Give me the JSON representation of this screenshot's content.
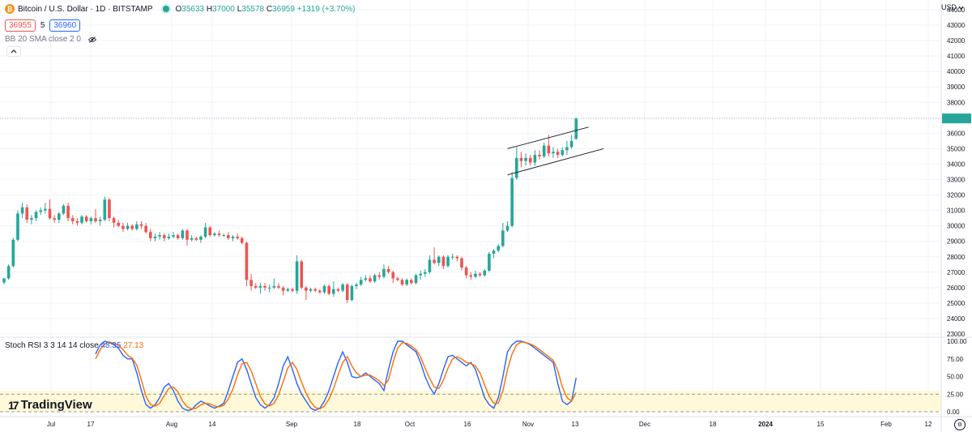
{
  "header": {
    "title": "Bitcoin / U.S. Dollar · 1D · BITSTAMP",
    "ohlc": {
      "o_label": "O",
      "o": "35633",
      "h_label": "H",
      "h": "37000",
      "l_label": "L",
      "l": "35578",
      "c_label": "C",
      "c": "36959",
      "change": "+1319 (+3.70%)"
    }
  },
  "trade": {
    "sell": "36955",
    "spread": "5",
    "buy": "36960"
  },
  "indicator": {
    "label": "BB 20 SMA close 2 0"
  },
  "collapse_icon": "chevron-up-icon",
  "rsi_legend": {
    "label": "Stoch RSI 3 3 14 14 close",
    "k": "48.35",
    "d": "27.13"
  },
  "currency": "USD",
  "logo": {
    "mark": "17",
    "text": "TradingView"
  },
  "colors": {
    "up": "#26a69a",
    "down": "#ef5350",
    "k_line": "#2962ff",
    "d_line": "#ff6d00",
    "band": "#fff9d9",
    "grid": "#f0f3fa"
  },
  "chart_data": [
    {
      "type": "candlestick",
      "name": "BTCUSD",
      "y_ticks": [
        "23000",
        "24000",
        "25000",
        "26000",
        "27000",
        "28000",
        "29000",
        "30000",
        "31000",
        "32000",
        "33000",
        "34000",
        "35000",
        "36000",
        "37000",
        "38000",
        "39000",
        "40000",
        "41000",
        "42000",
        "43000",
        "44000"
      ],
      "ylim": [
        23000,
        44000
      ],
      "x_labels": [
        "Jul",
        "17",
        "Aug",
        "14",
        "Sep",
        "18",
        "Oct",
        "16",
        "Nov",
        "13",
        "Dec",
        "18",
        "2024",
        "15",
        "Feb",
        "12"
      ],
      "last_price": 36959,
      "candles": [
        [
          26330,
          26600,
          26200,
          26600
        ],
        [
          26600,
          27500,
          26500,
          27400
        ],
        [
          27400,
          29200,
          27300,
          29100
        ],
        [
          29100,
          31000,
          29000,
          30800
        ],
        [
          30800,
          31500,
          30500,
          31200
        ],
        [
          31200,
          31400,
          30200,
          30400
        ],
        [
          30400,
          30700,
          30100,
          30500
        ],
        [
          30500,
          31000,
          30300,
          30900
        ],
        [
          30900,
          31200,
          30700,
          31000
        ],
        [
          31000,
          31500,
          30800,
          31100
        ],
        [
          31100,
          31700,
          30400,
          30500
        ],
        [
          30500,
          30700,
          30200,
          30400
        ],
        [
          30400,
          30900,
          30200,
          30800
        ],
        [
          30800,
          31400,
          30700,
          31300
        ],
        [
          31300,
          31500,
          30300,
          30500
        ],
        [
          30500,
          30700,
          30100,
          30300
        ],
        [
          30300,
          30500,
          30000,
          30200
        ],
        [
          30200,
          30700,
          30100,
          30600
        ],
        [
          30600,
          30700,
          30200,
          30300
        ],
        [
          30300,
          30600,
          30100,
          30500
        ],
        [
          30500,
          31100,
          30200,
          30300
        ],
        [
          30300,
          30600,
          30000,
          30400
        ],
        [
          30400,
          31900,
          30300,
          31700
        ],
        [
          31700,
          31800,
          30300,
          30500
        ],
        [
          30500,
          30600,
          29900,
          30200
        ],
        [
          30200,
          30400,
          29900,
          30000
        ],
        [
          30000,
          30200,
          29600,
          29800
        ],
        [
          29800,
          30200,
          29700,
          30000
        ],
        [
          30000,
          30100,
          29700,
          29800
        ],
        [
          29800,
          30300,
          29700,
          30100
        ],
        [
          30100,
          30300,
          29800,
          30000
        ],
        [
          30000,
          30200,
          29500,
          29600
        ],
        [
          29600,
          29800,
          29000,
          29200
        ],
        [
          29200,
          29500,
          29000,
          29300
        ],
        [
          29300,
          29600,
          29100,
          29400
        ],
        [
          29400,
          29500,
          29000,
          29200
        ],
        [
          29200,
          29500,
          29100,
          29300
        ],
        [
          29300,
          29600,
          29200,
          29400
        ],
        [
          29400,
          29500,
          29100,
          29200
        ],
        [
          29200,
          29800,
          29100,
          29700
        ],
        [
          29700,
          29800,
          28700,
          29100
        ],
        [
          29100,
          29400,
          29000,
          29200
        ],
        [
          29200,
          29300,
          29000,
          29100
        ],
        [
          29100,
          29400,
          28900,
          29300
        ],
        [
          29300,
          30200,
          29200,
          29900
        ],
        [
          29900,
          30000,
          29300,
          29400
        ],
        [
          29400,
          29600,
          29300,
          29500
        ],
        [
          29500,
          29700,
          29300,
          29400
        ],
        [
          29400,
          29500,
          29300,
          29400
        ],
        [
          29400,
          29600,
          29100,
          29200
        ],
        [
          29200,
          29400,
          29000,
          29300
        ],
        [
          29300,
          29500,
          29100,
          29200
        ],
        [
          29200,
          29300,
          28800,
          28900
        ],
        [
          28900,
          29000,
          26100,
          26500
        ],
        [
          26500,
          26900,
          25800,
          26100
        ],
        [
          26100,
          26300,
          25900,
          26000
        ],
        [
          26000,
          26300,
          25600,
          26100
        ],
        [
          26100,
          26300,
          25800,
          26000
        ],
        [
          26000,
          26200,
          25700,
          26000
        ],
        [
          26000,
          26600,
          25900,
          26100
        ],
        [
          26100,
          26300,
          25900,
          26000
        ],
        [
          26000,
          26100,
          25500,
          25800
        ],
        [
          25800,
          26000,
          25700,
          25900
        ],
        [
          25900,
          26000,
          25700,
          25800
        ],
        [
          25800,
          28100,
          25600,
          27700
        ],
        [
          27700,
          27800,
          25900,
          26000
        ],
        [
          26000,
          26100,
          25200,
          25800
        ],
        [
          25800,
          26000,
          25700,
          25900
        ],
        [
          25900,
          26000,
          25700,
          25800
        ],
        [
          25800,
          25900,
          25600,
          25700
        ],
        [
          25700,
          26200,
          25600,
          26100
        ],
        [
          26100,
          26200,
          25500,
          25600
        ],
        [
          25600,
          26400,
          25400,
          25900
        ],
        [
          25900,
          26000,
          25700,
          25800
        ],
        [
          25800,
          26300,
          25700,
          26200
        ],
        [
          26200,
          26300,
          25000,
          25200
        ],
        [
          25200,
          26200,
          25100,
          26100
        ],
        [
          26100,
          26300,
          25900,
          26200
        ],
        [
          26200,
          26700,
          26100,
          26500
        ],
        [
          26500,
          26800,
          26400,
          26600
        ],
        [
          26600,
          26800,
          26300,
          26400
        ],
        [
          26400,
          26900,
          26300,
          26800
        ],
        [
          26800,
          27000,
          26500,
          26700
        ],
        [
          26700,
          27500,
          26600,
          27200
        ],
        [
          27200,
          27400,
          26900,
          27000
        ],
        [
          27000,
          27100,
          26300,
          26600
        ],
        [
          26600,
          26700,
          26400,
          26500
        ],
        [
          26500,
          26600,
          26100,
          26200
        ],
        [
          26200,
          26600,
          26100,
          26500
        ],
        [
          26500,
          26600,
          26200,
          26300
        ],
        [
          26300,
          26900,
          26200,
          26800
        ],
        [
          26800,
          27100,
          26500,
          26900
        ],
        [
          26900,
          27200,
          26700,
          27000
        ],
        [
          27000,
          28100,
          26900,
          27800
        ],
        [
          27800,
          28600,
          27500,
          27600
        ],
        [
          27600,
          28100,
          27400,
          28000
        ],
        [
          28000,
          28100,
          27200,
          27400
        ],
        [
          27400,
          28100,
          27300,
          28000
        ],
        [
          28000,
          28200,
          27800,
          28000
        ],
        [
          28000,
          28100,
          27700,
          27900
        ],
        [
          27900,
          28000,
          27100,
          27300
        ],
        [
          27300,
          27400,
          26600,
          26800
        ],
        [
          26800,
          27000,
          26500,
          26700
        ],
        [
          26700,
          27100,
          26600,
          26900
        ],
        [
          26900,
          27000,
          26700,
          26800
        ],
        [
          26800,
          27200,
          26700,
          27100
        ],
        [
          27100,
          28300,
          27000,
          28200
        ],
        [
          28200,
          28500,
          27900,
          28400
        ],
        [
          28400,
          28800,
          28300,
          28700
        ],
        [
          28700,
          30200,
          28600,
          29700
        ],
        [
          29700,
          30300,
          29600,
          30000
        ],
        [
          30000,
          33500,
          29900,
          33100
        ],
        [
          33100,
          35100,
          33000,
          34400
        ],
        [
          34400,
          34800,
          33800,
          34200
        ],
        [
          34200,
          34700,
          33900,
          34400
        ],
        [
          34400,
          34600,
          33900,
          34100
        ],
        [
          34100,
          34900,
          33900,
          34600
        ],
        [
          34600,
          34900,
          34300,
          34500
        ],
        [
          34500,
          35400,
          34400,
          35200
        ],
        [
          35200,
          35900,
          34500,
          34700
        ],
        [
          34700,
          35100,
          34400,
          34800
        ],
        [
          34800,
          35000,
          34400,
          34600
        ],
        [
          34600,
          35100,
          34500,
          34900
        ],
        [
          34900,
          35500,
          34600,
          35100
        ],
        [
          35100,
          35900,
          35000,
          35500
        ],
        [
          35633,
          37000,
          35578,
          36959
        ]
      ]
    },
    {
      "type": "line",
      "name": "Stoch RSI",
      "y_ticks": [
        "0.00",
        "25.00",
        "50.00",
        "75.00",
        "100.00"
      ],
      "ylim": [
        0,
        100
      ],
      "band": [
        20,
        80
      ],
      "series": [
        {
          "name": "K",
          "values": [
            82,
            95,
            100,
            98,
            95,
            90,
            80,
            75,
            75,
            55,
            30,
            10,
            5,
            10,
            20,
            35,
            40,
            30,
            15,
            5,
            2,
            3,
            10,
            15,
            12,
            8,
            5,
            8,
            12,
            30,
            50,
            70,
            75,
            60,
            40,
            20,
            10,
            5,
            10,
            20,
            40,
            65,
            78,
            60,
            40,
            25,
            15,
            5,
            2,
            5,
            15,
            30,
            50,
            70,
            85,
            70,
            50,
            48,
            50,
            55,
            50,
            45,
            40,
            30,
            60,
            85,
            100,
            100,
            95,
            90,
            85,
            70,
            50,
            35,
            25,
            40,
            60,
            78,
            80,
            75,
            70,
            65,
            70,
            60,
            40,
            20,
            10,
            5,
            20,
            50,
            85,
            95,
            100,
            100,
            98,
            95,
            90,
            85,
            80,
            75,
            70,
            40,
            15,
            10,
            15,
            48
          ]
        },
        {
          "name": "D",
          "values": [
            75,
            88,
            96,
            99,
            97,
            94,
            88,
            80,
            76,
            66,
            45,
            22,
            10,
            8,
            12,
            23,
            33,
            35,
            28,
            15,
            7,
            4,
            5,
            10,
            12,
            11,
            8,
            7,
            9,
            18,
            32,
            52,
            68,
            70,
            58,
            40,
            22,
            11,
            8,
            12,
            24,
            43,
            62,
            70,
            60,
            42,
            26,
            14,
            6,
            4,
            8,
            18,
            33,
            52,
            70,
            78,
            65,
            55,
            50,
            52,
            52,
            48,
            44,
            37,
            45,
            70,
            90,
            98,
            97,
            93,
            88,
            78,
            62,
            47,
            35,
            33,
            45,
            62,
            75,
            78,
            75,
            70,
            68,
            65,
            55,
            38,
            22,
            12,
            12,
            30,
            60,
            82,
            95,
            99,
            98,
            96,
            93,
            88,
            83,
            78,
            73,
            58,
            35,
            20,
            15,
            27
          ]
        }
      ]
    }
  ]
}
